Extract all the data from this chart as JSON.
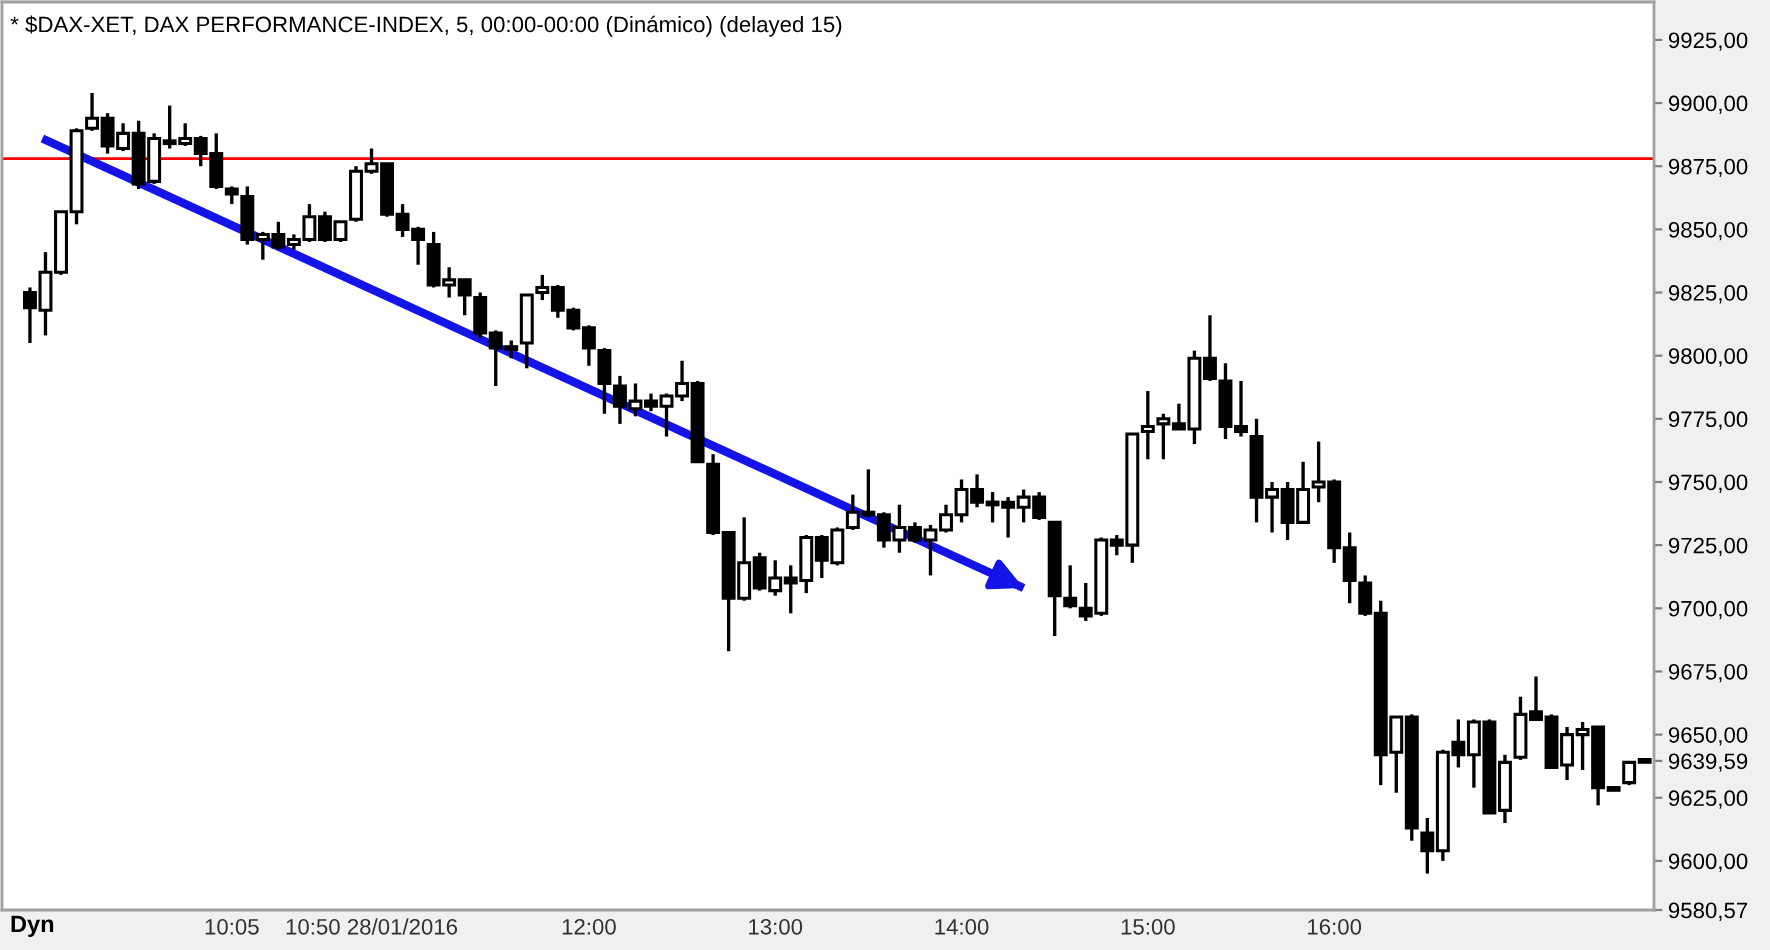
{
  "chart_data": {
    "type": "candlestick",
    "title": "* $DAX-XET, DAX PERFORMANCE-INDEX, 5, 00:00-00:00 (Dinámico) (delayed 15)",
    "color": "#000000",
    "x": [
      "2016-01-28T09:00",
      "2016-01-28T09:05",
      "2016-01-28T09:10",
      "2016-01-28T09:15",
      "2016-01-28T09:20",
      "2016-01-28T09:25",
      "2016-01-28T09:30",
      "2016-01-28T09:35",
      "2016-01-28T09:40",
      "2016-01-28T09:45",
      "2016-01-28T09:50",
      "2016-01-28T09:55",
      "2016-01-28T10:00",
      "2016-01-28T10:05",
      "2016-01-28T10:10",
      "2016-01-28T10:15",
      "2016-01-28T10:20",
      "2016-01-28T10:25",
      "2016-01-28T10:30",
      "2016-01-28T10:35",
      "2016-01-28T10:40",
      "2016-01-28T10:45",
      "2016-01-28T10:50",
      "2016-01-28T10:55",
      "2016-01-28T11:00",
      "2016-01-28T11:05",
      "2016-01-28T11:10",
      "2016-01-28T11:15",
      "2016-01-28T11:20",
      "2016-01-28T11:25",
      "2016-01-28T11:30",
      "2016-01-28T11:35",
      "2016-01-28T11:40",
      "2016-01-28T11:45",
      "2016-01-28T11:50",
      "2016-01-28T11:55",
      "2016-01-28T12:00",
      "2016-01-28T12:05",
      "2016-01-28T12:10",
      "2016-01-28T12:15",
      "2016-01-28T12:20",
      "2016-01-28T12:25",
      "2016-01-28T12:30",
      "2016-01-28T12:35",
      "2016-01-28T12:40",
      "2016-01-28T12:45",
      "2016-01-28T12:50",
      "2016-01-28T12:55",
      "2016-01-28T13:00",
      "2016-01-28T13:05",
      "2016-01-28T13:10",
      "2016-01-28T13:15",
      "2016-01-28T13:20",
      "2016-01-28T13:25",
      "2016-01-28T13:30",
      "2016-01-28T13:35",
      "2016-01-28T13:40",
      "2016-01-28T13:45",
      "2016-01-28T13:50",
      "2016-01-28T13:55",
      "2016-01-28T14:00",
      "2016-01-28T14:05",
      "2016-01-28T14:10",
      "2016-01-28T14:15",
      "2016-01-28T14:20",
      "2016-01-28T14:25",
      "2016-01-28T14:30",
      "2016-01-28T14:35",
      "2016-01-28T14:40",
      "2016-01-28T14:45",
      "2016-01-28T14:50",
      "2016-01-28T14:55",
      "2016-01-28T15:00",
      "2016-01-28T15:05",
      "2016-01-28T15:10",
      "2016-01-28T15:15",
      "2016-01-28T15:20",
      "2016-01-28T15:25",
      "2016-01-28T15:30",
      "2016-01-28T15:35",
      "2016-01-28T15:40",
      "2016-01-28T15:45",
      "2016-01-28T15:50",
      "2016-01-28T15:55",
      "2016-01-28T16:00",
      "2016-01-28T16:05",
      "2016-01-28T16:10",
      "2016-01-28T16:15",
      "2016-01-28T16:20",
      "2016-01-28T16:25",
      "2016-01-28T16:30",
      "2016-01-28T16:35",
      "2016-01-28T16:40",
      "2016-01-28T16:45",
      "2016-01-28T16:50",
      "2016-01-28T16:55",
      "2016-01-28T17:00",
      "2016-01-28T17:05",
      "2016-01-28T17:10",
      "2016-01-28T17:15",
      "2016-01-28T17:20",
      "2016-01-28T17:25",
      "2016-01-28T17:30",
      "2016-01-28T17:35",
      "2016-01-28T17:40"
    ],
    "ohlc": [
      [
        9825,
        9827,
        9805,
        9819
      ],
      [
        9818,
        9841,
        9808,
        9833
      ],
      [
        9833,
        9857,
        9832,
        9857
      ],
      [
        9857,
        9890,
        9852,
        9889
      ],
      [
        9890,
        9904,
        9889,
        9894
      ],
      [
        9894,
        9896,
        9880,
        9883
      ],
      [
        9882,
        9892,
        9881,
        9888
      ],
      [
        9888,
        9893,
        9866,
        9868
      ],
      [
        9869,
        9888,
        9868,
        9886
      ],
      [
        9885,
        9899,
        9882,
        9884
      ],
      [
        9884,
        9892,
        9883,
        9886
      ],
      [
        9886,
        9887,
        9875,
        9880
      ],
      [
        9880,
        9888,
        9866,
        9867
      ],
      [
        9866,
        9867,
        9860,
        9864
      ],
      [
        9863,
        9867,
        9844,
        9846
      ],
      [
        9846,
        9849,
        9838,
        9848
      ],
      [
        9848,
        9853,
        9842,
        9843
      ],
      [
        9844,
        9848,
        9842,
        9846
      ],
      [
        9846,
        9860,
        9845,
        9855
      ],
      [
        9855,
        9857,
        9845,
        9846
      ],
      [
        9846,
        9853,
        9845,
        9853
      ],
      [
        9854,
        9875,
        9853,
        9873
      ],
      [
        9873,
        9882,
        9872,
        9876
      ],
      [
        9876,
        9876,
        9855,
        9856
      ],
      [
        9856,
        9860,
        9847,
        9850
      ],
      [
        9850,
        9851,
        9836,
        9846
      ],
      [
        9844,
        9849,
        9827,
        9828
      ],
      [
        9828,
        9835,
        9823,
        9830
      ],
      [
        9830,
        9830,
        9816,
        9824
      ],
      [
        9823,
        9825,
        9807,
        9809
      ],
      [
        9809,
        9810,
        9788,
        9803
      ],
      [
        9803,
        9806,
        9799,
        9803
      ],
      [
        9805,
        9824,
        9795,
        9824
      ],
      [
        9825,
        9832,
        9822,
        9827
      ],
      [
        9827,
        9828,
        9815,
        9818
      ],
      [
        9818,
        9819,
        9810,
        9811
      ],
      [
        9811,
        9812,
        9796,
        9803
      ],
      [
        9802,
        9803,
        9777,
        9789
      ],
      [
        9788,
        9792,
        9773,
        9780
      ],
      [
        9779,
        9789,
        9776,
        9782
      ],
      [
        9782,
        9785,
        9778,
        9780
      ],
      [
        9780,
        9785,
        9768,
        9784
      ],
      [
        9784,
        9798,
        9782,
        9789
      ],
      [
        9789,
        9790,
        9758,
        9758
      ],
      [
        9757,
        9761,
        9729,
        9730
      ],
      [
        9730,
        9730,
        9683,
        9704
      ],
      [
        9704,
        9736,
        9703,
        9718
      ],
      [
        9720,
        9722,
        9707,
        9708
      ],
      [
        9707,
        9719,
        9705,
        9712
      ],
      [
        9712,
        9717,
        9698,
        9710
      ],
      [
        9711,
        9729,
        9706,
        9728
      ],
      [
        9728,
        9729,
        9712,
        9719
      ],
      [
        9718,
        9732,
        9717,
        9731
      ],
      [
        9732,
        9745,
        9731,
        9738
      ],
      [
        9738,
        9755,
        9736,
        9737
      ],
      [
        9737,
        9738,
        9724,
        9727
      ],
      [
        9727,
        9741,
        9722,
        9732
      ],
      [
        9732,
        9734,
        9726,
        9727
      ],
      [
        9727,
        9733,
        9713,
        9731
      ],
      [
        9731,
        9741,
        9730,
        9737
      ],
      [
        9737,
        9751,
        9734,
        9747
      ],
      [
        9747,
        9753,
        9740,
        9742
      ],
      [
        9742,
        9746,
        9734,
        9741
      ],
      [
        9742,
        9744,
        9728,
        9740
      ],
      [
        9740,
        9747,
        9734,
        9744
      ],
      [
        9744,
        9746,
        9735,
        9736
      ],
      [
        9734,
        9734,
        9689,
        9705
      ],
      [
        9704,
        9717,
        9700,
        9701
      ],
      [
        9700,
        9710,
        9695,
        9697
      ],
      [
        9698,
        9728,
        9697,
        9727
      ],
      [
        9727,
        9729,
        9721,
        9725
      ],
      [
        9725,
        9769,
        9718,
        9769
      ],
      [
        9770,
        9786,
        9759,
        9772
      ],
      [
        9773,
        9777,
        9759,
        9775
      ],
      [
        9773,
        9781,
        9771,
        9771
      ],
      [
        9771,
        9802,
        9765,
        9799
      ],
      [
        9799,
        9816,
        9790,
        9791
      ],
      [
        9790,
        9797,
        9767,
        9772
      ],
      [
        9772,
        9790,
        9768,
        9770
      ],
      [
        9768,
        9775,
        9734,
        9744
      ],
      [
        9744,
        9750,
        9730,
        9747
      ],
      [
        9747,
        9750,
        9727,
        9734
      ],
      [
        9734,
        9758,
        9734,
        9747
      ],
      [
        9748,
        9766,
        9742,
        9750
      ],
      [
        9750,
        9751,
        9718,
        9724
      ],
      [
        9724,
        9730,
        9702,
        9711
      ],
      [
        9710,
        9713,
        9697,
        9698
      ],
      [
        9698,
        9703,
        9630,
        9642
      ],
      [
        9643,
        9657,
        9627,
        9657
      ],
      [
        9657,
        9658,
        9608,
        9613
      ],
      [
        9611,
        9617,
        9595,
        9604
      ],
      [
        9604,
        9644,
        9600,
        9643
      ],
      [
        9647,
        9656,
        9637,
        9642
      ],
      [
        9642,
        9656,
        9629,
        9655
      ],
      [
        9655,
        9656,
        9619,
        9619
      ],
      [
        9620,
        9642,
        9615,
        9639
      ],
      [
        9641,
        9665,
        9640,
        9658
      ],
      [
        9659,
        9673,
        9656,
        9656
      ],
      [
        9657,
        9658,
        9637,
        9637
      ],
      [
        9638,
        9653,
        9632,
        9650
      ],
      [
        9650,
        9655,
        9636,
        9652
      ],
      [
        9653,
        9653,
        9622,
        9629
      ],
      [
        9629,
        9629,
        9628,
        9628
      ],
      [
        9631,
        9639,
        9630,
        9639
      ],
      [
        9639.59,
        9639.59,
        9639.59,
        9639.59
      ]
    ],
    "series": [
      {
        "type": "line",
        "x": [
          "2016-01-28T09:04",
          "2016-01-28T14:20"
        ],
        "values": [
          9886,
          9708
        ],
        "color": "#1414e6"
      }
    ],
    "ref_lines": [
      {
        "axis": "y",
        "value": 9878,
        "color": "#ff0000"
      }
    ],
    "xlim": [
      "2016-01-28T08:51",
      "2016-01-28T17:43"
    ],
    "xticks": [
      {
        "value": "2016-01-28T10:05",
        "label": "10:05"
      },
      {
        "value": "2016-01-28T10:50",
        "label": "10:50 28/01/2016"
      },
      {
        "value": "2016-01-28T12:00",
        "label": "12:00"
      },
      {
        "value": "2016-01-28T13:00",
        "label": "13:00"
      },
      {
        "value": "2016-01-28T14:00",
        "label": "14:00"
      },
      {
        "value": "2016-01-28T15:00",
        "label": "15:00"
      },
      {
        "value": "2016-01-28T16:00",
        "label": "16:00"
      }
    ],
    "ylim": [
      9580.57,
      9940
    ],
    "yticks": [
      {
        "value": 9580.57,
        "label": "9580,57"
      },
      {
        "value": 9600,
        "label": "9600,00"
      },
      {
        "value": 9625,
        "label": "9625,00"
      },
      {
        "value": 9639.59,
        "label": "9639,59"
      },
      {
        "value": 9650,
        "label": "9650,00"
      },
      {
        "value": 9675,
        "label": "9675,00"
      },
      {
        "value": 9700,
        "label": "9700,00"
      },
      {
        "value": 9725,
        "label": "9725,00"
      },
      {
        "value": 9750,
        "label": "9750,00"
      },
      {
        "value": 9775,
        "label": "9775,00"
      },
      {
        "value": 9800,
        "label": "9800,00"
      },
      {
        "value": 9825,
        "label": "9825,00"
      },
      {
        "value": 9850,
        "label": "9850,00"
      },
      {
        "value": 9875,
        "label": "9875,00"
      },
      {
        "value": 9900,
        "label": "9900,00"
      },
      {
        "value": 9925,
        "label": "9925,00"
      }
    ],
    "annotations": [
      "Dyn"
    ]
  }
}
